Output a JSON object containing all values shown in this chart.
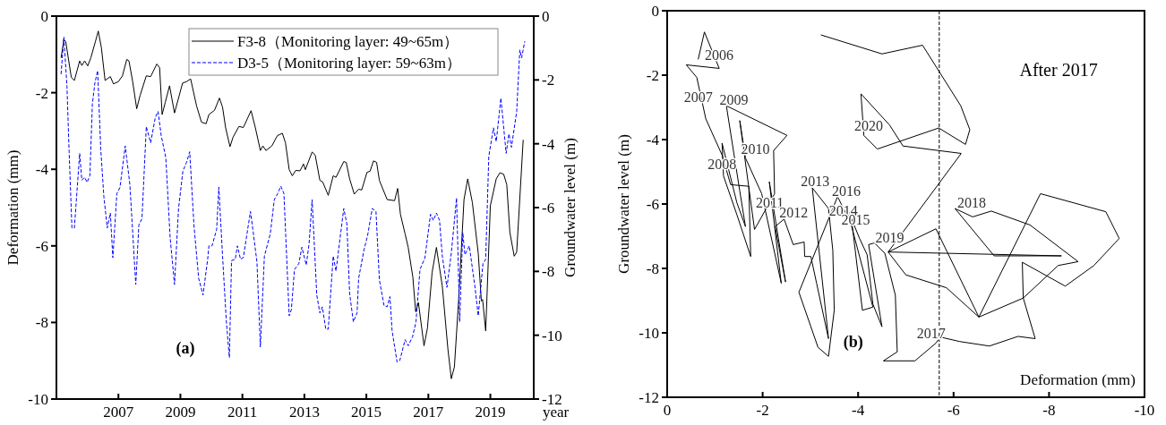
{
  "chart_data": [
    {
      "type": "line",
      "xlabel": "year",
      "ylabel": "Deformation (mm)",
      "y2label": "Groundwater level (m)",
      "xlim": [
        2005,
        2020.4
      ],
      "xticks": [
        2007,
        2009,
        2011,
        2013,
        2015,
        2017,
        2019
      ],
      "ylim": [
        -10,
        0
      ],
      "yticks": [
        -10,
        -8,
        -6,
        -4,
        -2,
        0
      ],
      "y2lim": [
        -12,
        0
      ],
      "y2ticks": [
        -12,
        -10,
        -8,
        -6,
        -4,
        -2,
        0
      ],
      "legend": "top right",
      "annotations": [
        "(a)"
      ],
      "series": [
        {
          "name": "F3-8（Monitoring layer: 49~65m）",
          "color": "#000000",
          "line_style": "solid",
          "x": [
            2005.15,
            2005.24,
            2005.3,
            2005.48,
            2005.58,
            2005.75,
            2005.82,
            2005.91,
            2006.01,
            2006.11,
            2006.26,
            2006.35,
            2006.45,
            2006.57,
            2006.74,
            2006.84,
            2007.0,
            2007.13,
            2007.27,
            2007.34,
            2007.46,
            2007.59,
            2007.7,
            2007.9,
            2008.04,
            2008.24,
            2008.33,
            2008.41,
            2008.51,
            2008.65,
            2008.81,
            2009.07,
            2009.2,
            2009.33,
            2009.52,
            2009.68,
            2009.83,
            2009.92,
            2010.1,
            2010.26,
            2010.36,
            2010.46,
            2010.6,
            2010.7,
            2010.89,
            2011.03,
            2011.28,
            2011.42,
            2011.58,
            2011.66,
            2011.76,
            2011.95,
            2012.13,
            2012.29,
            2012.39,
            2012.51,
            2012.61,
            2012.72,
            2012.86,
            2012.97,
            2013.03,
            2013.25,
            2013.35,
            2013.5,
            2013.59,
            2013.77,
            2013.93,
            2014.02,
            2014.27,
            2014.35,
            2014.46,
            2014.61,
            2014.75,
            2014.85,
            2015.02,
            2015.12,
            2015.23,
            2015.33,
            2015.42,
            2015.67,
            2015.91,
            2016.01,
            2016.1,
            2016.25,
            2016.35,
            2016.5,
            2016.59,
            2016.68,
            2016.86,
            2016.97,
            2017.12,
            2017.26,
            2017.45,
            2017.63,
            2017.74,
            2017.84,
            2017.98,
            2018.15,
            2018.27,
            2018.42,
            2018.61,
            2018.71,
            2018.75,
            2018.85,
            2019.0,
            2019.19,
            2019.31,
            2019.43,
            2019.53,
            2019.63,
            2019.77,
            2019.85,
            2020.06
          ],
          "values": [
            -1.09,
            -0.62,
            -0.66,
            -1.6,
            -1.68,
            -1.17,
            -1.29,
            -1.17,
            -1.3,
            -1.09,
            -0.66,
            -0.39,
            -0.82,
            -1.68,
            -1.58,
            -1.77,
            -1.71,
            -1.56,
            -1.13,
            -1.17,
            -1.71,
            -2.42,
            -2.07,
            -1.56,
            -1.58,
            -1.25,
            -1.35,
            -2.57,
            -2.26,
            -1.82,
            -2.53,
            -1.75,
            -1.71,
            -1.64,
            -2.34,
            -2.77,
            -2.81,
            -2.57,
            -2.46,
            -2.14,
            -2.38,
            -2.92,
            -3.41,
            -3.16,
            -2.88,
            -2.91,
            -2.47,
            -2.92,
            -3.51,
            -3.39,
            -3.51,
            -3.39,
            -3.12,
            -3.06,
            -3.31,
            -4.01,
            -4.17,
            -4.03,
            -4.04,
            -3.86,
            -4.01,
            -3.55,
            -3.63,
            -4.29,
            -4.33,
            -4.68,
            -4.17,
            -4.21,
            -3.8,
            -3.82,
            -4.25,
            -4.65,
            -4.52,
            -4.54,
            -4.08,
            -4.05,
            -3.78,
            -3.82,
            -4.29,
            -4.79,
            -4.82,
            -4.5,
            -5.18,
            -5.69,
            -6.04,
            -6.82,
            -7.72,
            -7.48,
            -8.61,
            -8.15,
            -6.7,
            -6.04,
            -7.05,
            -8.69,
            -9.47,
            -9.16,
            -7.37,
            -4.79,
            -4.25,
            -4.87,
            -6.2,
            -7.44,
            -7.4,
            -8.22,
            -4.95,
            -4.25,
            -4.09,
            -4.13,
            -4.4,
            -5.65,
            -6.27,
            -6.16,
            -3.23
          ]
        },
        {
          "name": "D3-5（Monitoring layer: 59~63m）",
          "color": "#0000ff",
          "line_style": "dashed",
          "axis": "y2",
          "x": [
            2005.15,
            2005.24,
            2005.34,
            2005.41,
            2005.5,
            2005.58,
            2005.75,
            2005.82,
            2005.91,
            2005.99,
            2006.08,
            2006.16,
            2006.24,
            2006.33,
            2006.43,
            2006.53,
            2006.64,
            2006.74,
            2006.82,
            2006.95,
            2007.05,
            2007.22,
            2007.37,
            2007.56,
            2007.66,
            2007.76,
            2007.9,
            2008.04,
            2008.19,
            2008.28,
            2008.38,
            2008.53,
            2008.67,
            2008.81,
            2008.94,
            2009.08,
            2009.2,
            2009.3,
            2009.44,
            2009.59,
            2009.73,
            2009.88,
            2009.92,
            2010.02,
            2010.17,
            2010.24,
            2010.36,
            2010.48,
            2010.58,
            2010.65,
            2010.77,
            2010.84,
            2010.94,
            2011.03,
            2011.26,
            2011.35,
            2011.47,
            2011.58,
            2011.71,
            2011.9,
            2012.03,
            2012.14,
            2012.24,
            2012.34,
            2012.51,
            2012.58,
            2012.68,
            2012.82,
            2012.92,
            2013.06,
            2013.15,
            2013.25,
            2013.4,
            2013.5,
            2013.58,
            2013.69,
            2013.77,
            2013.93,
            2014.02,
            2014.27,
            2014.37,
            2014.46,
            2014.58,
            2014.7,
            2014.75,
            2014.92,
            2015.04,
            2015.19,
            2015.31,
            2015.42,
            2015.57,
            2015.67,
            2015.76,
            2015.83,
            2015.99,
            2016.08,
            2016.25,
            2016.35,
            2016.49,
            2016.6,
            2016.73,
            2016.89,
            2017.07,
            2017.16,
            2017.26,
            2017.36,
            2017.45,
            2017.6,
            2017.74,
            2017.91,
            2018.01,
            2018.11,
            2018.18,
            2018.32,
            2018.5,
            2018.61,
            2018.76,
            2018.85,
            2018.95,
            2019.1,
            2019.19,
            2019.34,
            2019.51,
            2019.6,
            2019.68,
            2019.85,
            2019.95,
            2020.01,
            2020.11
          ],
          "values": [
            -1.82,
            -0.65,
            -2.2,
            -4.25,
            -6.64,
            -6.64,
            -4.3,
            -5.14,
            -5.05,
            -5.21,
            -5.0,
            -2.76,
            -2.1,
            -1.71,
            -4.16,
            -5.65,
            -6.64,
            -6.17,
            -7.57,
            -5.56,
            -5.37,
            -4.07,
            -5.28,
            -8.41,
            -6.54,
            -6.35,
            -3.46,
            -3.97,
            -3.18,
            -2.99,
            -3.74,
            -4.44,
            -6.96,
            -8.41,
            -6.03,
            -4.86,
            -4.58,
            -4.25,
            -6.59,
            -8.22,
            -8.74,
            -7.62,
            -7.2,
            -7.2,
            -6.68,
            -5.36,
            -7.52,
            -9.53,
            -10.7,
            -7.66,
            -7.62,
            -7.2,
            -7.62,
            -7.57,
            -6.12,
            -6.78,
            -7.71,
            -10.37,
            -7.52,
            -6.82,
            -5.75,
            -5.56,
            -5.33,
            -5.56,
            -9.39,
            -9.2,
            -7.94,
            -7.76,
            -7.24,
            -7.8,
            -7.15,
            -5.75,
            -8.74,
            -9.3,
            -9.11,
            -9.81,
            -9.81,
            -7.52,
            -7.99,
            -6.03,
            -6.5,
            -8.69,
            -9.58,
            -9.3,
            -8.22,
            -7.34,
            -6.87,
            -6.03,
            -6.12,
            -8.27,
            -9.07,
            -9.11,
            -8.79,
            -9.86,
            -10.84,
            -10.79,
            -10.14,
            -10.33,
            -10.05,
            -9.58,
            -7.94,
            -7.57,
            -6.21,
            -6.4,
            -6.17,
            -6.4,
            -7.52,
            -8.5,
            -7.43,
            -5.7,
            -9.58,
            -6.78,
            -7.48,
            -7.2,
            -8.46,
            -9.39,
            -7.76,
            -7.62,
            -4.39,
            -3.5,
            -3.93,
            -2.57,
            -4.3,
            -3.69,
            -4.11,
            -2.99,
            -1.06,
            -1.31,
            -0.79
          ]
        }
      ]
    },
    {
      "type": "line",
      "xlabel": "Deformation (mm)",
      "ylabel": "Groundwater level (m)",
      "xlim": [
        0,
        -10
      ],
      "xticks": [
        0,
        -2,
        -4,
        -6,
        -8,
        -10
      ],
      "ylim": [
        -12,
        0
      ],
      "yticks": [
        -12,
        -10,
        -8,
        -6,
        -4,
        -2,
        0
      ],
      "ref_lines": [
        {
          "axis": "x",
          "value": -5.7,
          "color": "#000000",
          "line_style": "dashed"
        }
      ],
      "annotations": [
        "After 2017",
        "(b)",
        "2006",
        "2007",
        "2009",
        "2008",
        "2010",
        "2011",
        "2012",
        "2013",
        "2016",
        "2014",
        "2015",
        "2019",
        "2020",
        "2018",
        "2017"
      ],
      "series": [
        {
          "color": "#000000",
          "line_style": "solid",
          "x": [
            -0.65,
            -0.78,
            -1.09,
            -0.4,
            -0.62,
            -0.81,
            -1.15,
            -1.33,
            -1.71,
            -1.75,
            -1.46,
            -1.18,
            -1.15,
            -1.46,
            -1.64,
            -1.52,
            -1.24,
            -2.51,
            -2.23,
            -2.25,
            -1.83,
            -1.52,
            -1.64,
            -1.98,
            -2.39,
            -2.14,
            -2.33,
            -2.48,
            -2.26,
            -2.45,
            -2.64,
            -2.87,
            -2.88,
            -3.01,
            -3.13,
            -3.38,
            -3.04,
            -3.38,
            -3.47,
            -3.5,
            -3.38,
            -3.16,
            -2.76,
            -3.57,
            -3.88,
            -4.09,
            -4.31,
            -3.75,
            -4.03,
            -4.19,
            -4.31,
            -4.5,
            -4.22,
            -4.34,
            -4.56,
            -4.78,
            -4.82,
            -4.53,
            -5.19,
            -5.63,
            -5.72,
            -6.13,
            -6.75,
            -7.35,
            -7.71,
            -7.46,
            -6.53,
            -7.82,
            -9.19,
            -9.47,
            -8.94,
            -8.34,
            -7.44,
            -7.46,
            -8.19,
            -8.61,
            -7.6,
            -6.79,
            -6.4,
            -6.03,
            -6.85,
            -8.26,
            -4.63,
            -5.63,
            -6.53,
            -5.85,
            -5,
            -4.63,
            -6.16,
            -4.94,
            -4.66,
            -4.06,
            -4.12,
            -4.4,
            -4.41,
            -5.69,
            -6.25,
            -6.34,
            -6.15,
            -5.35,
            -4.5,
            -3.22
          ],
          "values": [
            -1.51,
            -0.66,
            -1.79,
            -1.68,
            -2.07,
            -3.36,
            -4.48,
            -5.4,
            -5.45,
            -7.63,
            -6.33,
            -5.13,
            -4.11,
            -5.96,
            -6.7,
            -5.59,
            -2.95,
            -3.87,
            -4.34,
            -5.68,
            -6.79,
            -3.41,
            -4.57,
            -5.68,
            -8.46,
            -5.31,
            -7.07,
            -8.42,
            -6.7,
            -6.47,
            -7.26,
            -7.18,
            -7.63,
            -7.63,
            -8.46,
            -10.18,
            -5.5,
            -6.14,
            -7.44,
            -9.3,
            -10.73,
            -10.45,
            -8.74,
            -5.77,
            -6.7,
            -9.3,
            -9.2,
            -6.05,
            -7.07,
            -7.58,
            -9.11,
            -9.81,
            -7.26,
            -7.21,
            -7.53,
            -8.83,
            -10.59,
            -10.87,
            -10.87,
            -10.32,
            -10.13,
            -10.27,
            -10.41,
            -10.11,
            -10.18,
            -8.92,
            -9.51,
            -5.68,
            -6.24,
            -7.07,
            -7.91,
            -8.55,
            -7.81,
            -8.92,
            -7.91,
            -7.79,
            -6.65,
            -6.22,
            -6.4,
            -6.14,
            -7.61,
            -7.61,
            -7.49,
            -6.77,
            -9.51,
            -8.6,
            -8.2,
            -7.49,
            -4.43,
            -4.2,
            -3.55,
            -2.58,
            -3.87,
            -4.29,
            -4.29,
            -3.64,
            -4.15,
            -3.69,
            -2.95,
            -1.07,
            -1.34,
            -0.75
          ]
        }
      ]
    }
  ]
}
